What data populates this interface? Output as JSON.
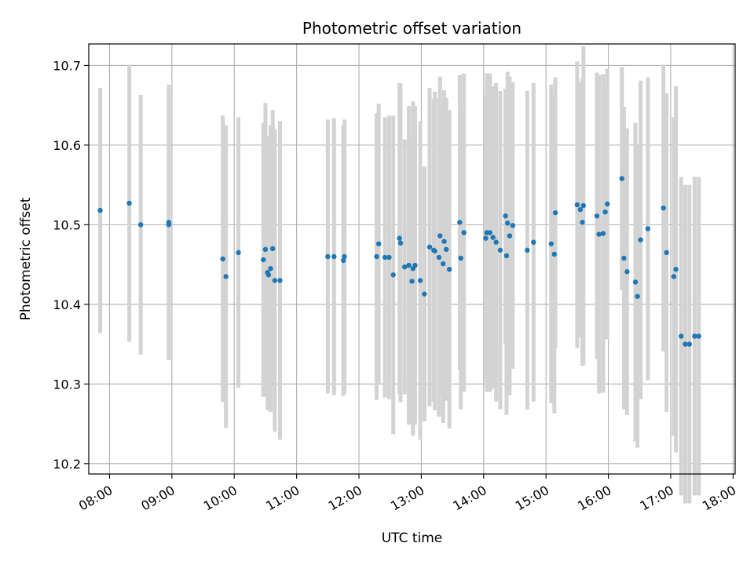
{
  "chart_data": {
    "type": "scatter",
    "title": "Photometric offset variation",
    "xlabel": "UTC time",
    "ylabel": "Photometric offset",
    "grid": true,
    "xlim": [
      "07:40",
      "18:02"
    ],
    "ylim": [
      10.187,
      10.727
    ],
    "xticks": [
      "08:00",
      "09:00",
      "10:00",
      "11:00",
      "12:00",
      "13:00",
      "14:00",
      "15:00",
      "16:00",
      "17:00",
      "18:00"
    ],
    "yticks": [
      "10.2",
      "10.3",
      "10.4",
      "10.5",
      "10.6",
      "10.7"
    ],
    "colors": {
      "points": "#1f77b4",
      "errorbars": "#d3d3d3",
      "grid": "#b0b0b0"
    },
    "series": [
      {
        "x": [
          "07:51",
          "08:19",
          "08:30",
          "08:57",
          "08:57",
          "09:49",
          "09:52",
          "10:04",
          "10:28",
          "10:30",
          "10:32",
          "10:33",
          "10:35",
          "10:37",
          "10:39",
          "10:44",
          "11:30",
          "11:36",
          "11:45",
          "11:46",
          "12:17",
          "12:19",
          "12:25",
          "12:29",
          "12:33",
          "12:39",
          "12:40",
          "12:44",
          "12:48",
          "12:51",
          "12:52",
          "12:54",
          "12:59",
          "13:03",
          "13:08",
          "13:12",
          "13:13",
          "13:17",
          "13:18",
          "13:21",
          "13:22",
          "13:24",
          "13:27",
          "13:37",
          "13:38",
          "13:41",
          "14:02",
          "14:03",
          "14:06",
          "14:09",
          "14:12",
          "14:16",
          "14:21",
          "14:22",
          "14:23",
          "14:25",
          "14:28",
          "14:42",
          "14:48",
          "15:05",
          "15:08",
          "15:09",
          "15:30",
          "15:33",
          "15:35",
          "15:36",
          "15:49",
          "15:51",
          "15:55",
          "15:57",
          "15:59",
          "16:13",
          "16:15",
          "16:18",
          "16:26",
          "16:28",
          "16:31",
          "16:38",
          "16:53",
          "16:56",
          "17:03",
          "17:05",
          "17:10",
          "17:14",
          "17:18",
          "17:23",
          "17:27"
        ],
        "y": [
          10.518,
          10.527,
          10.5,
          10.503,
          10.5,
          10.457,
          10.435,
          10.465,
          10.456,
          10.469,
          10.44,
          10.437,
          10.445,
          10.47,
          10.43,
          10.43,
          10.46,
          10.46,
          10.455,
          10.46,
          10.46,
          10.476,
          10.459,
          10.459,
          10.437,
          10.483,
          10.477,
          10.447,
          10.449,
          10.429,
          10.445,
          10.449,
          10.43,
          10.413,
          10.472,
          10.468,
          10.467,
          10.459,
          10.486,
          10.451,
          10.479,
          10.469,
          10.444,
          10.503,
          10.458,
          10.49,
          10.483,
          10.49,
          10.49,
          10.484,
          10.478,
          10.468,
          10.511,
          10.461,
          10.502,
          10.486,
          10.499,
          10.468,
          10.478,
          10.476,
          10.463,
          10.515,
          10.525,
          10.519,
          10.503,
          10.524,
          10.511,
          10.488,
          10.489,
          10.516,
          10.526,
          10.558,
          10.458,
          10.441,
          10.428,
          10.41,
          10.481,
          10.495,
          10.521,
          10.465,
          10.435,
          10.444,
          10.36,
          10.35,
          10.35,
          10.36,
          10.36
        ],
        "err": [
          0.154,
          0.174,
          0.163,
          0.173,
          0.17,
          0.18,
          0.19,
          0.17,
          0.172,
          0.184,
          0.172,
          0.17,
          0.18,
          0.174,
          0.19,
          0.2,
          0.172,
          0.174,
          0.17,
          0.172,
          0.18,
          0.176,
          0.176,
          0.178,
          0.2,
          0.195,
          0.2,
          0.16,
          0.2,
          0.176,
          0.21,
          0.2,
          0.2,
          0.16,
          0.2,
          0.19,
          0.2,
          0.2,
          0.2,
          0.2,
          0.19,
          0.19,
          0.2,
          0.185,
          0.19,
          0.2,
          0.18,
          0.2,
          0.2,
          0.19,
          0.2,
          0.2,
          0.16,
          0.2,
          0.19,
          0.2,
          0.18,
          0.2,
          0.2,
          0.2,
          0.2,
          0.17,
          0.18,
          0.16,
          0.18,
          0.2,
          0.18,
          0.2,
          0.2,
          0.16,
          0.17,
          0.14,
          0.19,
          0.18,
          0.2,
          0.19,
          0.2,
          0.19,
          0.18,
          0.2,
          0.2,
          0.23,
          0.2,
          0.2,
          0.2,
          0.2,
          0.2
        ]
      }
    ]
  }
}
